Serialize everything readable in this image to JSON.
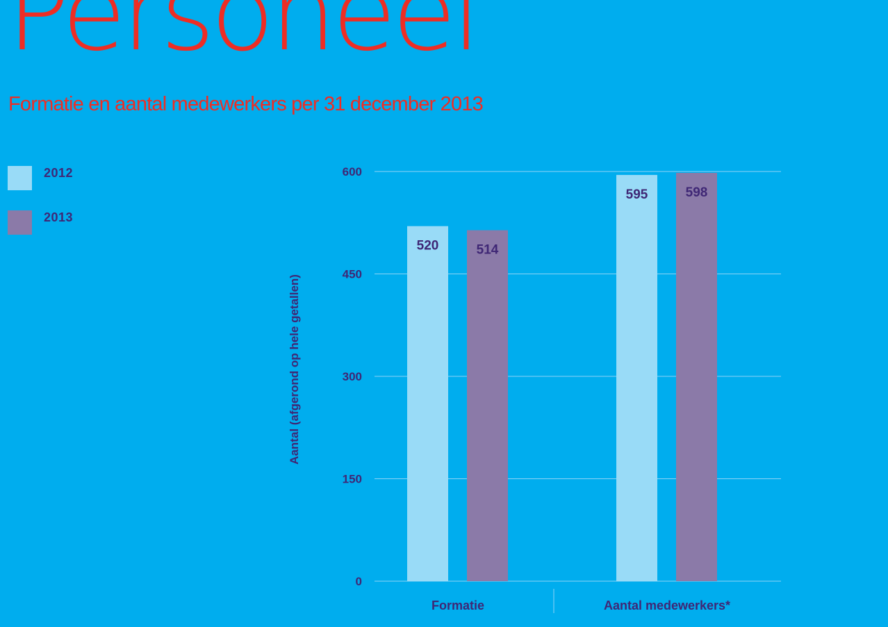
{
  "title": "Personeel",
  "subtitle": "Formatie en aantal medewerkers per 31 december 2013",
  "colors": {
    "background": "#00adee",
    "title": "#ee2d24",
    "text": "#3f2775",
    "series_2012": "#99dbf7",
    "series_2013": "#8b7aa8",
    "gridline": "#8fd4f5"
  },
  "legend": {
    "items": [
      {
        "label": "2012",
        "color": "#99dbf7"
      },
      {
        "label": "2013",
        "color": "#8b7aa8"
      }
    ]
  },
  "chart_data": {
    "type": "bar",
    "categories": [
      "Formatie",
      "Aantal medewerkers*"
    ],
    "series": [
      {
        "name": "2012",
        "values": [
          520,
          595
        ]
      },
      {
        "name": "2013",
        "values": [
          514,
          598
        ]
      }
    ],
    "ylabel": "Aantal (afgerond op hele getallen)",
    "xlabel": "",
    "ylim": [
      0,
      600
    ],
    "yticks": [
      0,
      150,
      300,
      450,
      600
    ],
    "ytick_labels": [
      "0",
      "150",
      "300",
      "450",
      "600"
    ],
    "data_labels": [
      [
        "520",
        "595"
      ],
      [
        "514",
        "598"
      ]
    ],
    "grid": true,
    "legend_position": "left"
  }
}
